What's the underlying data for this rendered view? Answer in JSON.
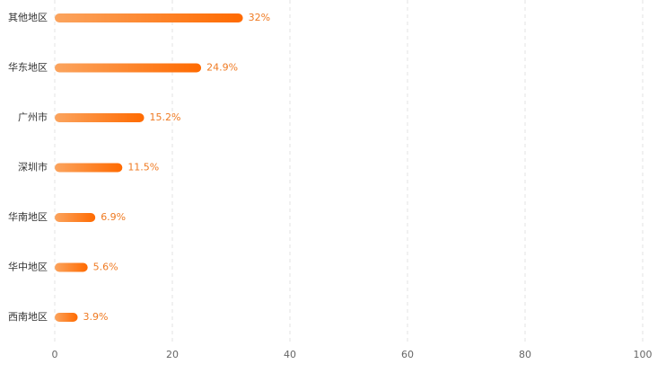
{
  "chart_data": {
    "type": "bar",
    "orientation": "horizontal",
    "categories": [
      "其他地区",
      "华东地区",
      "广州市",
      "深圳市",
      "华南地区",
      "华中地区",
      "西南地区"
    ],
    "values": [
      32,
      24.9,
      15.2,
      11.5,
      6.9,
      5.6,
      3.9
    ],
    "value_labels": [
      "32%",
      "24.9%",
      "15.2%",
      "11.5%",
      "6.9%",
      "5.6%",
      "3.9%"
    ],
    "color": [
      "#fba45e",
      "#ff6a00"
    ],
    "xlim": [
      0,
      100
    ],
    "xticks": [
      0,
      20,
      40,
      60,
      80,
      100
    ],
    "grid": true
  }
}
